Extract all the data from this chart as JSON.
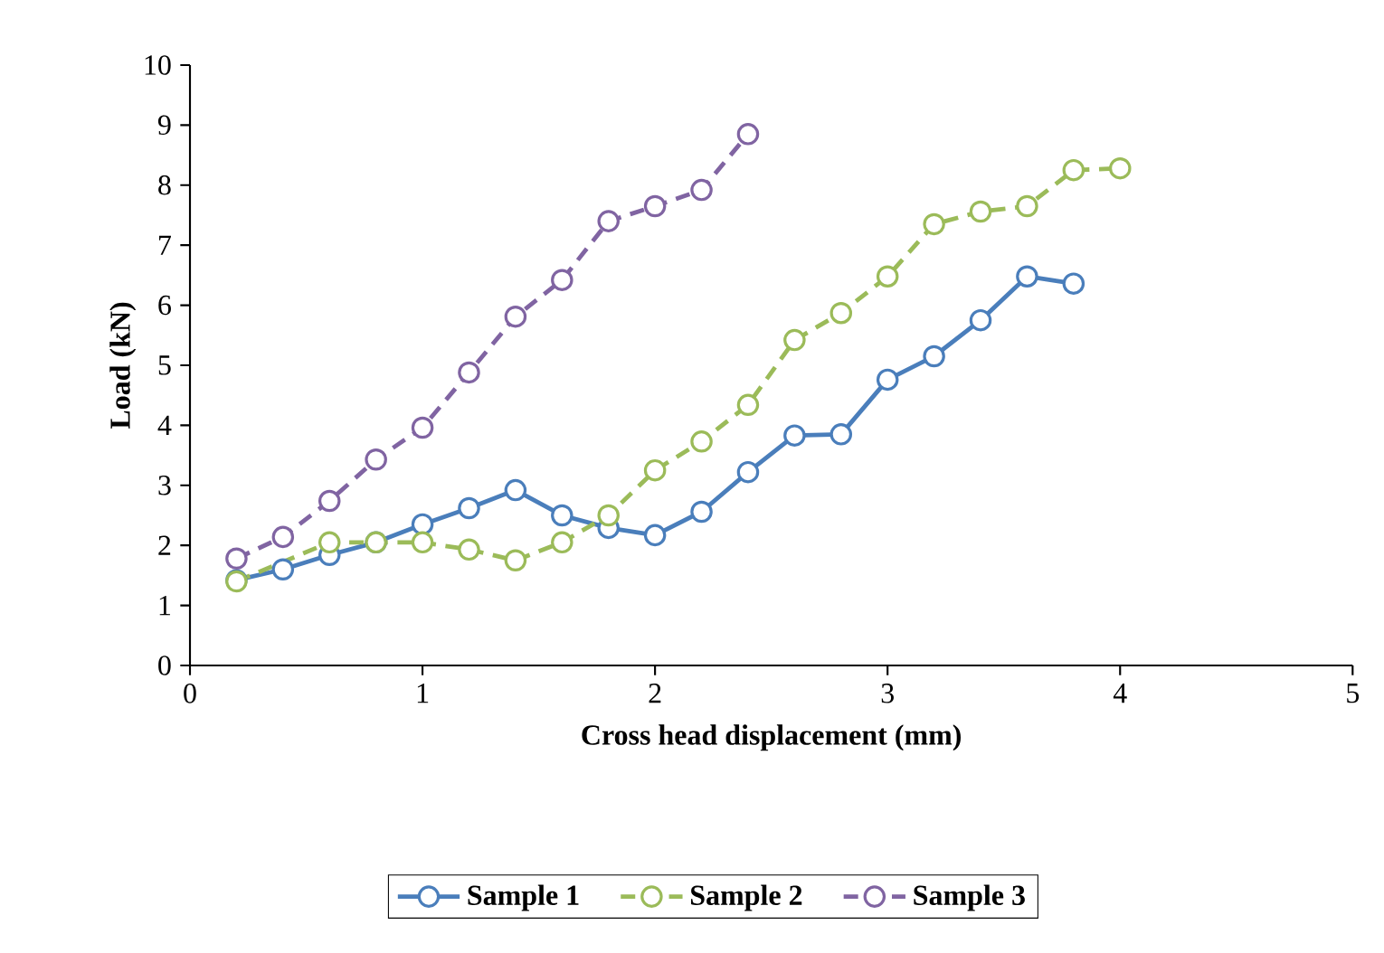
{
  "chart_data": {
    "type": "line",
    "xlabel": "Cross head displacement  (mm)",
    "ylabel": "Load  (kN)",
    "xlim": [
      0,
      5
    ],
    "xticks": [
      0,
      1,
      2,
      3,
      4,
      5
    ],
    "ylim": [
      0,
      10
    ],
    "yticks": [
      0,
      1,
      2,
      3,
      4,
      5,
      6,
      7,
      8,
      9,
      10
    ],
    "grid": false,
    "legend": "bottom",
    "marker": "circle",
    "series": [
      {
        "name": "Sample 1",
        "color": "#4a7ebb",
        "line_style": "solid",
        "x": [
          0.2,
          0.4,
          0.6,
          0.8,
          1.0,
          1.2,
          1.4,
          1.6,
          1.8,
          2.0,
          2.2,
          2.4,
          2.6,
          2.8,
          3.0,
          3.2,
          3.4,
          3.6,
          3.8
        ],
        "values": [
          1.42,
          1.6,
          1.84,
          2.05,
          2.35,
          2.62,
          2.92,
          2.5,
          2.29,
          2.17,
          2.56,
          3.22,
          3.83,
          3.85,
          4.76,
          5.15,
          5.75,
          6.48,
          6.36
        ]
      },
      {
        "name": "Sample 2",
        "color": "#9bbb59",
        "line_style": "dashed",
        "x": [
          0.2,
          0.6,
          0.8,
          1.0,
          1.2,
          1.4,
          1.6,
          1.8,
          2.0,
          2.2,
          2.4,
          2.6,
          2.8,
          3.0,
          3.2,
          3.4,
          3.6,
          3.8,
          4.0
        ],
        "values": [
          1.4,
          2.05,
          2.05,
          2.05,
          1.93,
          1.75,
          2.05,
          2.5,
          3.25,
          3.73,
          4.34,
          5.42,
          5.87,
          6.48,
          7.35,
          7.56,
          7.65,
          8.25,
          8.28
        ]
      },
      {
        "name": "Sample 3",
        "color": "#8064a2",
        "line_style": "dashed",
        "x": [
          0.2,
          0.4,
          0.6,
          0.8,
          1.0,
          1.2,
          1.4,
          1.6,
          1.8,
          2.0,
          2.2,
          2.4
        ],
        "values": [
          1.78,
          2.14,
          2.74,
          3.43,
          3.96,
          4.88,
          5.81,
          6.42,
          7.4,
          7.65,
          7.92,
          8.85
        ]
      }
    ]
  }
}
